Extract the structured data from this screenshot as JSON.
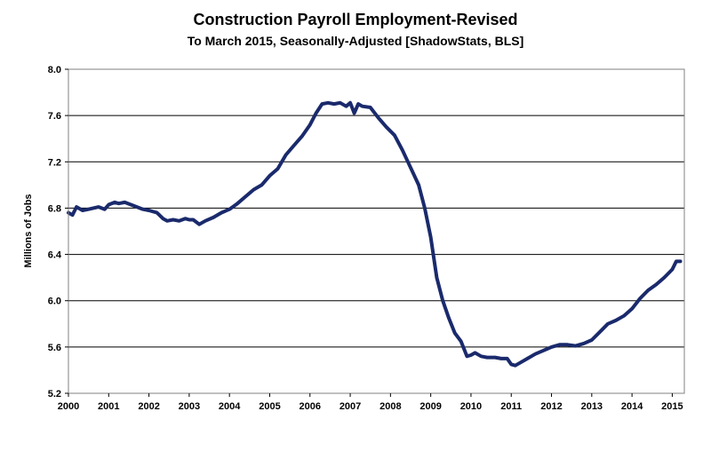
{
  "chart_data": {
    "type": "line",
    "title": "Construction Payroll Employment-Revised",
    "subtitle": "To March 2015, Seasonally-Adjusted [ShadowStats, BLS]",
    "xlabel": "",
    "ylabel": "Millions  of Jobs",
    "xlim": [
      2000,
      2015.3
    ],
    "ylim": [
      5.2,
      8.0
    ],
    "y_ticks": [
      "5.2",
      "5.6",
      "6.0",
      "6.4",
      "6.8",
      "7.2",
      "7.6",
      "8.0"
    ],
    "x_ticks": [
      "2000",
      "2001",
      "2002",
      "2003",
      "2004",
      "2005",
      "2006",
      "2007",
      "2008",
      "2009",
      "2010",
      "2011",
      "2012",
      "2013",
      "2014",
      "2015"
    ],
    "grid": true,
    "line_color": "#1a2a6c",
    "series": [
      {
        "name": "",
        "x": [
          2000.0,
          2000.1,
          2000.2,
          2000.35,
          2000.5,
          2000.75,
          2000.9,
          2001.0,
          2001.15,
          2001.25,
          2001.4,
          2001.55,
          2001.7,
          2001.85,
          2002.0,
          2002.2,
          2002.35,
          2002.45,
          2002.6,
          2002.75,
          2002.9,
          2003.0,
          2003.1,
          2003.25,
          2003.4,
          2003.6,
          2003.8,
          2004.0,
          2004.2,
          2004.4,
          2004.6,
          2004.8,
          2005.0,
          2005.2,
          2005.4,
          2005.6,
          2005.8,
          2006.0,
          2006.15,
          2006.3,
          2006.45,
          2006.6,
          2006.75,
          2006.9,
          2007.0,
          2007.1,
          2007.2,
          2007.3,
          2007.5,
          2007.7,
          2007.9,
          2008.1,
          2008.3,
          2008.5,
          2008.7,
          2008.85,
          2009.0,
          2009.15,
          2009.3,
          2009.45,
          2009.6,
          2009.75,
          2009.9,
          2010.0,
          2010.1,
          2010.25,
          2010.4,
          2010.6,
          2010.75,
          2010.9,
          2011.0,
          2011.1,
          2011.25,
          2011.4,
          2011.6,
          2011.8,
          2012.0,
          2012.2,
          2012.4,
          2012.6,
          2012.8,
          2013.0,
          2013.2,
          2013.4,
          2013.6,
          2013.8,
          2014.0,
          2014.2,
          2014.4,
          2014.6,
          2014.8,
          2015.0,
          2015.1,
          2015.2
        ],
        "values": [
          6.76,
          6.74,
          6.81,
          6.78,
          6.79,
          6.81,
          6.79,
          6.83,
          6.85,
          6.84,
          6.85,
          6.83,
          6.81,
          6.79,
          6.78,
          6.76,
          6.71,
          6.69,
          6.7,
          6.69,
          6.71,
          6.7,
          6.7,
          6.66,
          6.69,
          6.72,
          6.76,
          6.79,
          6.84,
          6.9,
          6.96,
          7.0,
          7.08,
          7.14,
          7.26,
          7.34,
          7.42,
          7.52,
          7.62,
          7.7,
          7.71,
          7.7,
          7.71,
          7.68,
          7.71,
          7.62,
          7.7,
          7.68,
          7.67,
          7.58,
          7.5,
          7.43,
          7.3,
          7.15,
          7.0,
          6.8,
          6.55,
          6.2,
          6.0,
          5.85,
          5.72,
          5.65,
          5.52,
          5.53,
          5.55,
          5.52,
          5.51,
          5.51,
          5.5,
          5.5,
          5.45,
          5.44,
          5.47,
          5.5,
          5.54,
          5.57,
          5.6,
          5.62,
          5.62,
          5.61,
          5.63,
          5.66,
          5.73,
          5.8,
          5.83,
          5.87,
          5.93,
          6.02,
          6.09,
          6.14,
          6.2,
          6.27,
          6.34,
          6.34
        ]
      }
    ]
  }
}
